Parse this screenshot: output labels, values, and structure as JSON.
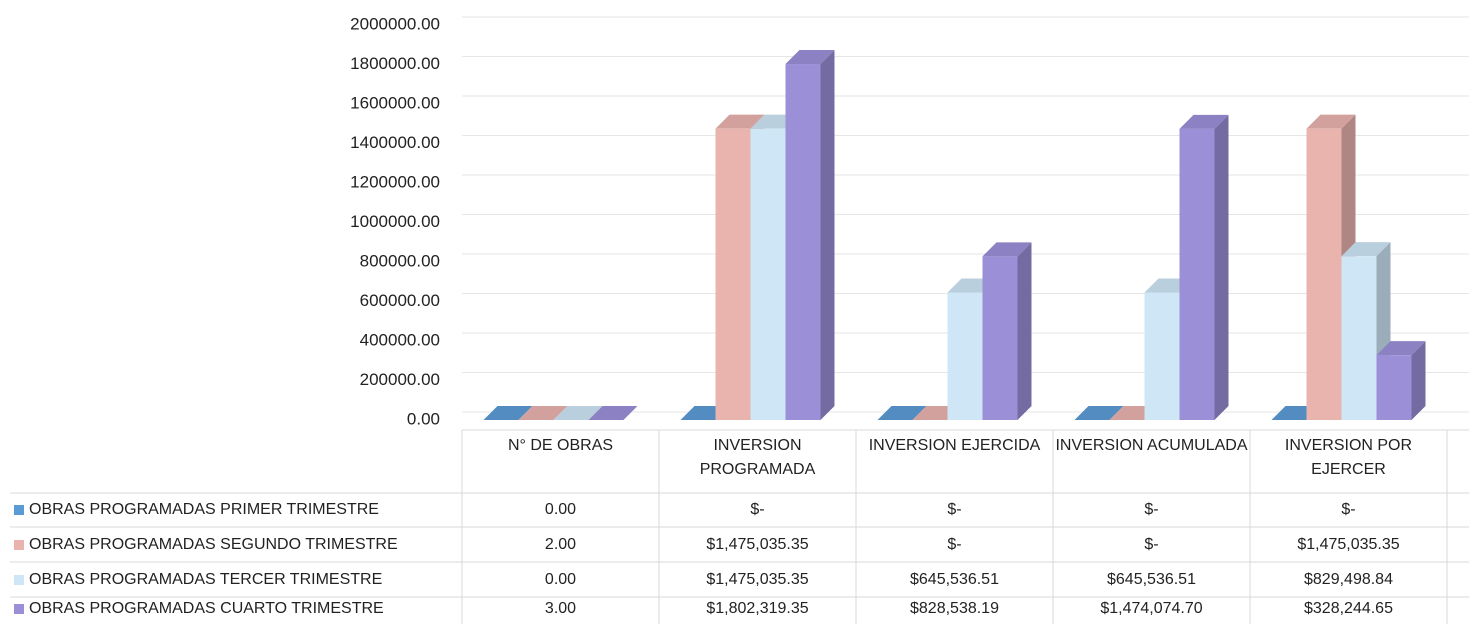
{
  "chart_data": {
    "type": "bar3d",
    "categories": [
      "N° DE OBRAS",
      "INVERSION PROGRAMADA",
      "INVERSION EJERCIDA",
      "INVERSION ACUMULADA",
      "INVERSION POR EJERCER"
    ],
    "series": [
      {
        "name": "OBRAS PROGRAMADAS PRIMER TRIMESTRE",
        "color": "#5b9bd5",
        "values": [
          0,
          0,
          0,
          0,
          0
        ],
        "value_labels": [
          "0.00",
          "$-",
          "$-",
          "$-",
          "$-"
        ]
      },
      {
        "name": "OBRAS PROGRAMADAS SEGUNDO TRIMESTRE",
        "color": "#e9b3ae",
        "values": [
          2,
          1475035.35,
          0,
          0,
          1475035.35
        ],
        "value_labels": [
          "2.00",
          "$1,475,035.35",
          "$-",
          "$-",
          "$1,475,035.35"
        ]
      },
      {
        "name": "OBRAS PROGRAMADAS TERCER TRIMESTRE",
        "color": "#cfe6f6",
        "values": [
          0,
          1475035.35,
          645536.51,
          645536.51,
          829498.84
        ],
        "value_labels": [
          "0.00",
          "$1,475,035.35",
          "$645,536.51",
          "$645,536.51",
          "$829,498.84"
        ]
      },
      {
        "name": "OBRAS PROGRAMADAS CUARTO TRIMESTRE",
        "color": "#9b8fd8",
        "values": [
          3,
          1802319.35,
          828538.19,
          1474074.7,
          328244.65
        ],
        "value_labels": [
          "3.00",
          "$1,802,319.35",
          "$828,538.19",
          "$1,474,074.70",
          "$328,244.65"
        ]
      }
    ],
    "ylim": [
      0,
      2000000
    ],
    "yticks": [
      {
        "value": 0,
        "label": "0.00"
      },
      {
        "value": 200000,
        "label": "200000.00"
      },
      {
        "value": 400000,
        "label": "400000.00"
      },
      {
        "value": 600000,
        "label": "600000.00"
      },
      {
        "value": 800000,
        "label": "800000.00"
      },
      {
        "value": 1000000,
        "label": "1000000.00"
      },
      {
        "value": 1200000,
        "label": "1200000.00"
      },
      {
        "value": 1400000,
        "label": "1400000.00"
      },
      {
        "value": 1600000,
        "label": "1600000.00"
      },
      {
        "value": 1800000,
        "label": "1800000.00"
      },
      {
        "value": 2000000,
        "label": "2000000.00"
      }
    ],
    "grid": true
  }
}
